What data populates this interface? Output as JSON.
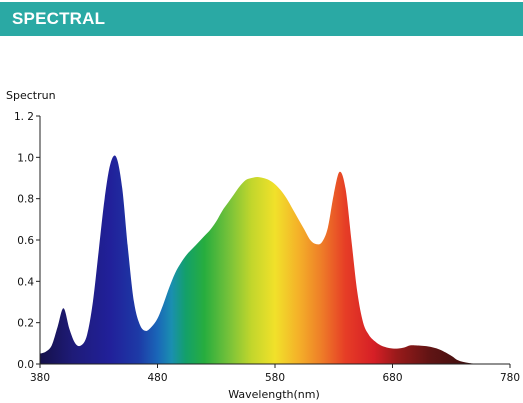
{
  "header": {
    "title": "SPECTRAL"
  },
  "chart_data": {
    "type": "area",
    "title": "",
    "xlabel": "Wavelength(nm)",
    "ylabel": "Spectrun",
    "xlim": [
      380,
      780
    ],
    "ylim": [
      0,
      1.2
    ],
    "grid": false,
    "x_ticks": [
      380,
      480,
      580,
      680,
      780
    ],
    "x_tick_labels": [
      "380",
      "480",
      "580",
      "680",
      "780"
    ],
    "y_ticks": [
      0,
      0.2,
      0.4,
      0.6,
      0.8,
      1.0,
      1.2
    ],
    "y_tick_labels": [
      "0.0",
      "0.2",
      "0.4",
      "0.6",
      "0.8",
      "1.0",
      "1. 2"
    ],
    "fill": "visible-spectrum gradient",
    "series": [
      {
        "x": [
          380,
          385,
          390,
          395,
          400,
          405,
          410,
          415,
          420,
          425,
          430,
          435,
          440,
          445,
          450,
          455,
          460,
          465,
          470,
          475,
          480,
          485,
          490,
          495,
          500,
          505,
          510,
          515,
          520,
          525,
          530,
          535,
          540,
          545,
          550,
          555,
          560,
          565,
          570,
          575,
          580,
          585,
          590,
          595,
          600,
          605,
          610,
          615,
          620,
          625,
          630,
          635,
          640,
          645,
          650,
          655,
          660,
          665,
          670,
          675,
          680,
          685,
          690,
          695,
          700,
          710,
          720,
          730,
          735,
          740,
          745,
          750,
          760,
          770,
          780
        ],
        "y": [
          0.05,
          0.06,
          0.09,
          0.18,
          0.27,
          0.17,
          0.1,
          0.09,
          0.14,
          0.3,
          0.55,
          0.8,
          0.97,
          1.0,
          0.85,
          0.55,
          0.3,
          0.19,
          0.16,
          0.18,
          0.22,
          0.29,
          0.37,
          0.44,
          0.49,
          0.53,
          0.56,
          0.59,
          0.62,
          0.65,
          0.69,
          0.74,
          0.78,
          0.82,
          0.86,
          0.89,
          0.9,
          0.905,
          0.9,
          0.89,
          0.87,
          0.84,
          0.8,
          0.75,
          0.7,
          0.65,
          0.6,
          0.58,
          0.59,
          0.66,
          0.82,
          0.93,
          0.85,
          0.6,
          0.35,
          0.2,
          0.14,
          0.11,
          0.09,
          0.08,
          0.075,
          0.075,
          0.08,
          0.09,
          0.09,
          0.085,
          0.07,
          0.04,
          0.02,
          0.01,
          0.005,
          0.002,
          0,
          0,
          0
        ]
      }
    ]
  }
}
